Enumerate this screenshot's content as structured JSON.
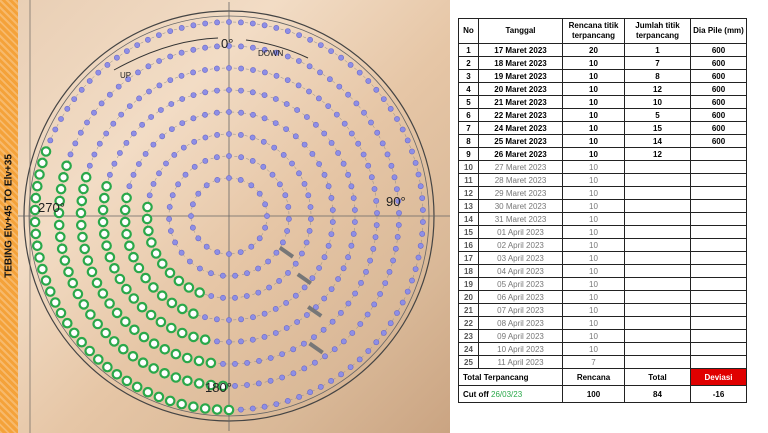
{
  "sidebar": {
    "label": "TEBING Elv+45 TO Elv+35"
  },
  "plan": {
    "labels": {
      "top": "0°",
      "right": "90°",
      "left": "270°",
      "bottom": "180°",
      "up": "UP",
      "down": "DOWN"
    },
    "colors": {
      "pile_driven": "#2aa84a",
      "pile_planned": "#8e8ee6",
      "ring": "#555555"
    }
  },
  "table": {
    "headers": [
      "No",
      "Tanggal",
      "Rencana titik terpancang",
      "Jumlah titik terpancang",
      "Dia Pile (mm)"
    ],
    "rows": [
      {
        "no": "1",
        "tanggal": "17 Maret 2023",
        "rencana": "20",
        "jumlah": "1",
        "dia": "600",
        "status": "done"
      },
      {
        "no": "2",
        "tanggal": "18 Maret 2023",
        "rencana": "10",
        "jumlah": "7",
        "dia": "600",
        "status": "done"
      },
      {
        "no": "3",
        "tanggal": "19 Maret 2023",
        "rencana": "10",
        "jumlah": "8",
        "dia": "600",
        "status": "done"
      },
      {
        "no": "4",
        "tanggal": "20 Maret 2023",
        "rencana": "10",
        "jumlah": "12",
        "dia": "600",
        "status": "done"
      },
      {
        "no": "5",
        "tanggal": "21 Maret 2023",
        "rencana": "10",
        "jumlah": "10",
        "dia": "600",
        "status": "done"
      },
      {
        "no": "6",
        "tanggal": "22 Maret 2023",
        "rencana": "10",
        "jumlah": "5",
        "dia": "600",
        "status": "done"
      },
      {
        "no": "7",
        "tanggal": "24 Maret 2023",
        "rencana": "10",
        "jumlah": "15",
        "dia": "600",
        "status": "done"
      },
      {
        "no": "8",
        "tanggal": "25 Maret 2023",
        "rencana": "10",
        "jumlah": "14",
        "dia": "600",
        "status": "done"
      },
      {
        "no": "9",
        "tanggal": "26 Maret 2023",
        "rencana": "10",
        "jumlah": "12",
        "dia": "",
        "status": "done"
      },
      {
        "no": "10",
        "tanggal": "27 Maret 2023",
        "rencana": "10",
        "jumlah": "",
        "dia": "",
        "status": "planned"
      },
      {
        "no": "11",
        "tanggal": "28 Maret 2023",
        "rencana": "10",
        "jumlah": "",
        "dia": "",
        "status": "planned"
      },
      {
        "no": "12",
        "tanggal": "29 Maret 2023",
        "rencana": "10",
        "jumlah": "",
        "dia": "",
        "status": "planned"
      },
      {
        "no": "13",
        "tanggal": "30 Maret 2023",
        "rencana": "10",
        "jumlah": "",
        "dia": "",
        "status": "planned"
      },
      {
        "no": "14",
        "tanggal": "31 Maret 2023",
        "rencana": "10",
        "jumlah": "",
        "dia": "",
        "status": "planned"
      },
      {
        "no": "15",
        "tanggal": "01 April 2023",
        "rencana": "10",
        "jumlah": "",
        "dia": "",
        "status": "planned"
      },
      {
        "no": "16",
        "tanggal": "02 April 2023",
        "rencana": "10",
        "jumlah": "",
        "dia": "",
        "status": "planned"
      },
      {
        "no": "17",
        "tanggal": "03 April 2023",
        "rencana": "10",
        "jumlah": "",
        "dia": "",
        "status": "planned"
      },
      {
        "no": "18",
        "tanggal": "04 April 2023",
        "rencana": "10",
        "jumlah": "",
        "dia": "",
        "status": "planned"
      },
      {
        "no": "19",
        "tanggal": "05 April 2023",
        "rencana": "10",
        "jumlah": "",
        "dia": "",
        "status": "planned"
      },
      {
        "no": "20",
        "tanggal": "06 April 2023",
        "rencana": "10",
        "jumlah": "",
        "dia": "",
        "status": "planned"
      },
      {
        "no": "21",
        "tanggal": "07 April 2023",
        "rencana": "10",
        "jumlah": "",
        "dia": "",
        "status": "planned"
      },
      {
        "no": "22",
        "tanggal": "08 April 2023",
        "rencana": "10",
        "jumlah": "",
        "dia": "",
        "status": "planned"
      },
      {
        "no": "23",
        "tanggal": "09 April 2023",
        "rencana": "10",
        "jumlah": "",
        "dia": "",
        "status": "planned"
      },
      {
        "no": "24",
        "tanggal": "10 April 2023",
        "rencana": "10",
        "jumlah": "",
        "dia": "",
        "status": "planned"
      },
      {
        "no": "25",
        "tanggal": "11 April 2023",
        "rencana": "7",
        "jumlah": "",
        "dia": "",
        "status": "planned"
      }
    ],
    "summary": {
      "label1": "Total Terpancang",
      "label2": "Cut off",
      "cutoff_date": "26/03/23",
      "h_rencana": "Rencana",
      "h_total": "Total",
      "h_deviasi": "Deviasi",
      "rencana": "100",
      "total": "84",
      "deviasi": "-16"
    }
  }
}
